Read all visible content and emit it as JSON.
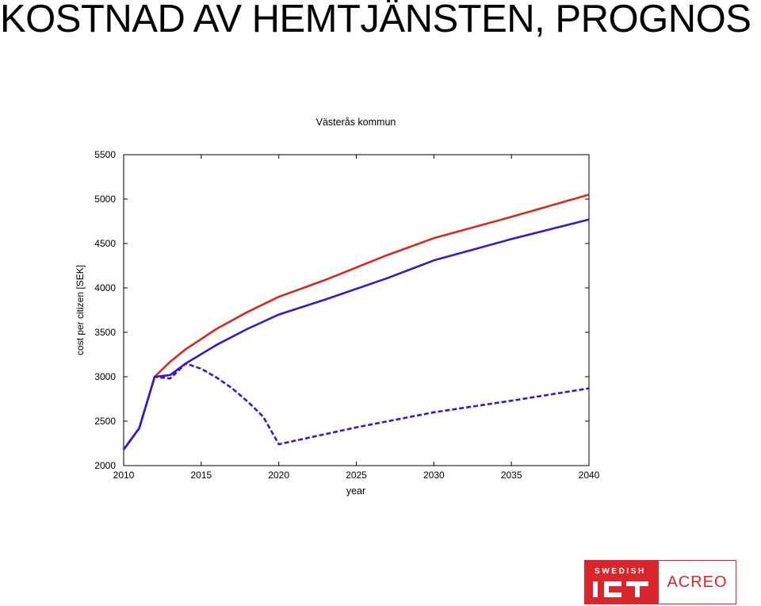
{
  "slide": {
    "title": "KOSTNAD AV HEMTJÄNSTEN, PROGNOS"
  },
  "logo": {
    "top_text": "SWEDISH",
    "main_text": "ICT",
    "partner_text": "ACREO",
    "color": "#d9262c"
  },
  "chart_data": {
    "type": "line",
    "title": "Västerås kommun",
    "xlabel": "year",
    "ylabel": "cost per citizen [SEK]",
    "xlim": [
      2010,
      2040
    ],
    "ylim": [
      2000,
      5500
    ],
    "xticks": [
      2010,
      2015,
      2020,
      2025,
      2030,
      2035,
      2040
    ],
    "yticks": [
      2000,
      2500,
      3000,
      3500,
      4000,
      4500,
      5000,
      5500
    ],
    "grid": false,
    "legend": "none",
    "series": [
      {
        "color": "#d42a1e",
        "dash": "solid",
        "x": [
          2010,
          2011,
          2012,
          2013,
          2014,
          2016,
          2018,
          2020,
          2023,
          2027,
          2030,
          2035,
          2040
        ],
        "y": [
          2180,
          2420,
          3000,
          3170,
          3310,
          3540,
          3730,
          3900,
          4090,
          4370,
          4560,
          4800,
          5050
        ]
      },
      {
        "color": "#3a18c8",
        "dash": "solid",
        "x": [
          2010,
          2011,
          2012,
          2013,
          2014,
          2016,
          2018,
          2020,
          2023,
          2027,
          2030,
          2035,
          2040
        ],
        "y": [
          2180,
          2420,
          3000,
          3020,
          3150,
          3360,
          3540,
          3700,
          3870,
          4110,
          4310,
          4550,
          4770
        ]
      },
      {
        "color": "#3a18c8",
        "dash": "dashed",
        "x": [
          2010,
          2011,
          2012,
          2013,
          2014,
          2015,
          2016,
          2017,
          2018,
          2019,
          2020,
          2025,
          2030,
          2035,
          2040
        ],
        "y": [
          2180,
          2420,
          3000,
          2980,
          3150,
          3090,
          2990,
          2870,
          2720,
          2550,
          2240,
          2430,
          2600,
          2730,
          2870
        ]
      }
    ]
  }
}
